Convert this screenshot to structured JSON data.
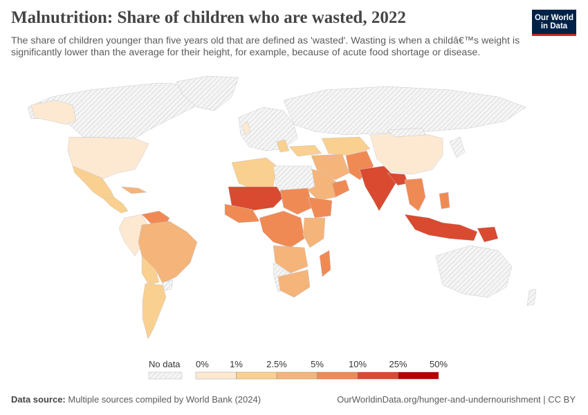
{
  "title": "Malnutrition: Share of children who are wasted, 2022",
  "subtitle": "The share of children younger than five years old that are defined as 'wasted'. Wasting is when a childâ€™s weight is significantly lower than the average for their height, for example, because of acute food shortage or disease.",
  "logo": {
    "line1": "Our World",
    "line2": "in Data",
    "bg": "#002147",
    "accent": "#ce261e"
  },
  "legend": {
    "no_data_label": "No data",
    "ticks": [
      "0%",
      "1%",
      "2.5%",
      "5%",
      "10%",
      "25%",
      "50%"
    ],
    "colors": [
      "#fde9d2",
      "#f9d08f",
      "#f5b47a",
      "#f08a55",
      "#d94a30",
      "#b30000"
    ]
  },
  "colors": {
    "no_data": "#ebebeb",
    "low": "#fde9d2",
    "c1": "#f9d08f",
    "c2": "#f5b47a",
    "c3": "#f08a55",
    "c4": "#d94a30",
    "border": "#ffffff"
  },
  "footer": {
    "source_label": "Data source:",
    "source_text": "Multiple sources compiled by World Bank (2024)",
    "right_text": "OurWorldinData.org/hunger-and-undernourishment | CC BY"
  }
}
